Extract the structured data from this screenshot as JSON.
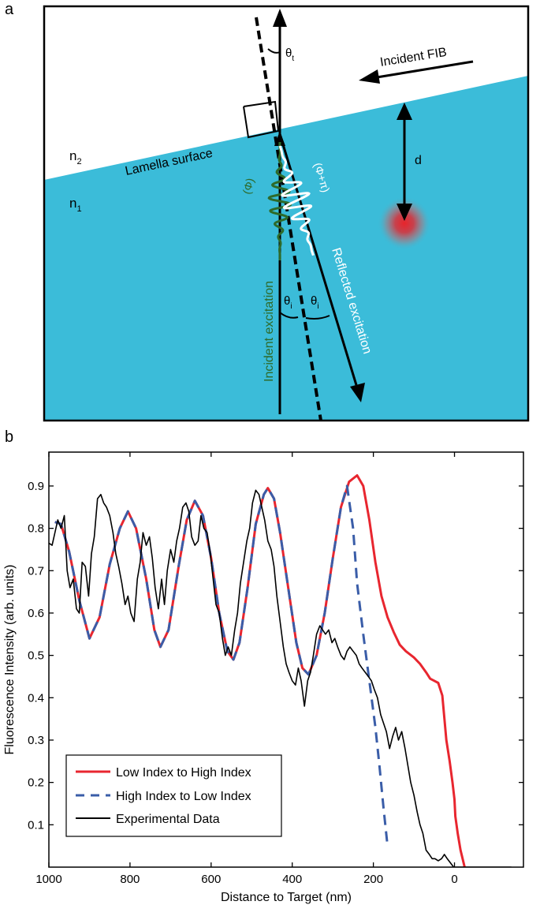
{
  "colors": {
    "lamella": "#3BBCD9",
    "incident_wave": "#2E6A2A",
    "reflected_wave": "#FFFFFF",
    "emitter": "#E8242B",
    "low_to_high": "#E8262F",
    "high_to_low": "#3A5DA8",
    "experimental": "#000000"
  },
  "panel_a": {
    "panel_label": "a",
    "theta_t": "θ",
    "theta_t_sub": "t",
    "theta_i": "θ",
    "theta_i_sub": "i",
    "incident_fib": "Incident FIB",
    "n2": "n",
    "n2_sub": "2",
    "n1": "n",
    "n1_sub": "1",
    "lamella_surface": "Lamella surface",
    "d": "d",
    "phi": "(Φ)",
    "phi_pi": "(Φ+π)",
    "incident_excitation": "Incident excitation",
    "reflected_excitation": "Reflected excitation"
  },
  "panel_b": {
    "panel_label": "b",
    "chart_data": {
      "type": "line",
      "title": "",
      "xlabel": "Distance to Target (nm)",
      "ylabel": "Fluorescence Intensity (arb. units)",
      "xlim": [
        1000,
        -170
      ],
      "ylim": [
        0,
        0.98
      ],
      "x_ticks": [
        1000,
        800,
        600,
        400,
        200,
        0
      ],
      "x_tick_labels": [
        "1000",
        "800",
        "600",
        "400",
        "200",
        "0"
      ],
      "y_ticks": [
        0.1,
        0.2,
        0.3,
        0.4,
        0.5,
        0.6,
        0.7,
        0.8,
        0.9
      ],
      "y_tick_labels": [
        "0.1",
        "0.2",
        "0.3",
        "0.4",
        "0.5",
        "0.6",
        "0.7",
        "0.8",
        "0.9"
      ],
      "grid": false,
      "legend_position": "bottom-left",
      "series": [
        {
          "name": "Low Index to High Index",
          "style": "solid",
          "x": [
            985,
            970,
            950,
            925,
            900,
            875,
            850,
            825,
            805,
            785,
            760,
            740,
            725,
            705,
            680,
            660,
            640,
            620,
            600,
            580,
            560,
            545,
            530,
            510,
            490,
            470,
            460,
            445,
            430,
            410,
            390,
            375,
            360,
            340,
            320,
            300,
            280,
            260,
            240,
            225,
            210,
            195,
            180,
            165,
            150,
            135,
            120,
            100,
            85,
            70,
            60,
            50,
            40,
            30,
            20,
            12,
            5,
            0,
            -2,
            -8,
            -15,
            -25,
            -30
          ],
          "y": [
            0.815,
            0.81,
            0.745,
            0.63,
            0.54,
            0.59,
            0.715,
            0.8,
            0.84,
            0.8,
            0.68,
            0.56,
            0.52,
            0.56,
            0.71,
            0.82,
            0.865,
            0.83,
            0.73,
            0.6,
            0.51,
            0.49,
            0.53,
            0.66,
            0.81,
            0.88,
            0.895,
            0.87,
            0.79,
            0.66,
            0.53,
            0.47,
            0.455,
            0.5,
            0.6,
            0.73,
            0.85,
            0.91,
            0.925,
            0.9,
            0.82,
            0.72,
            0.64,
            0.59,
            0.555,
            0.525,
            0.51,
            0.495,
            0.48,
            0.46,
            0.445,
            0.44,
            0.435,
            0.405,
            0.3,
            0.25,
            0.2,
            0.16,
            0.12,
            0.08,
            0.04,
            0.0,
            -0.02
          ]
        },
        {
          "name": "High Index to Low Index",
          "style": "dashed",
          "x": [
            985,
            970,
            950,
            925,
            900,
            875,
            850,
            825,
            805,
            785,
            760,
            740,
            725,
            705,
            680,
            660,
            640,
            620,
            600,
            580,
            560,
            545,
            530,
            510,
            490,
            470,
            460,
            445,
            430,
            410,
            390,
            375,
            360,
            340,
            320,
            300,
            280,
            265,
            250,
            240,
            225,
            210,
            195,
            185,
            175,
            165
          ],
          "y": [
            0.815,
            0.81,
            0.745,
            0.63,
            0.54,
            0.59,
            0.715,
            0.8,
            0.84,
            0.8,
            0.68,
            0.56,
            0.52,
            0.56,
            0.71,
            0.82,
            0.865,
            0.83,
            0.73,
            0.6,
            0.51,
            0.49,
            0.53,
            0.66,
            0.81,
            0.88,
            0.895,
            0.87,
            0.79,
            0.66,
            0.53,
            0.47,
            0.455,
            0.5,
            0.6,
            0.73,
            0.85,
            0.9,
            0.8,
            0.67,
            0.55,
            0.44,
            0.33,
            0.24,
            0.14,
            0.05
          ]
        },
        {
          "name": "Experimental Data",
          "style": "solid",
          "x": [
            1000,
            992,
            985,
            978,
            970,
            962,
            955,
            948,
            940,
            932,
            925,
            918,
            910,
            902,
            895,
            888,
            880,
            872,
            865,
            858,
            850,
            842,
            835,
            828,
            820,
            812,
            805,
            798,
            790,
            782,
            775,
            768,
            760,
            752,
            745,
            738,
            730,
            722,
            715,
            708,
            700,
            692,
            685,
            678,
            670,
            662,
            655,
            648,
            640,
            632,
            625,
            618,
            610,
            602,
            595,
            588,
            580,
            572,
            565,
            558,
            550,
            542,
            535,
            528,
            520,
            512,
            505,
            498,
            490,
            482,
            475,
            468,
            460,
            452,
            445,
            438,
            430,
            422,
            415,
            408,
            400,
            392,
            385,
            378,
            370,
            362,
            355,
            348,
            340,
            332,
            325,
            318,
            310,
            302,
            295,
            288,
            280,
            272,
            265,
            258,
            250,
            242,
            235,
            228,
            220,
            212,
            205,
            198,
            190,
            182,
            175,
            168,
            160,
            152,
            145,
            138,
            130,
            122,
            115,
            108,
            100,
            92,
            85,
            78,
            70,
            62,
            55,
            48,
            40,
            32,
            25,
            18,
            10,
            2,
            -5,
            -12,
            -20,
            -28,
            -35,
            -42,
            -50,
            -58,
            -65,
            -72,
            -80,
            -88,
            -95,
            -102,
            -110,
            -118,
            -125,
            -132,
            -140
          ],
          "y": [
            0.765,
            0.76,
            0.79,
            0.82,
            0.8,
            0.83,
            0.7,
            0.66,
            0.68,
            0.61,
            0.6,
            0.72,
            0.71,
            0.64,
            0.74,
            0.78,
            0.87,
            0.88,
            0.86,
            0.85,
            0.83,
            0.79,
            0.74,
            0.71,
            0.67,
            0.62,
            0.64,
            0.6,
            0.58,
            0.68,
            0.72,
            0.79,
            0.76,
            0.78,
            0.73,
            0.66,
            0.61,
            0.68,
            0.62,
            0.7,
            0.75,
            0.72,
            0.77,
            0.8,
            0.85,
            0.86,
            0.84,
            0.78,
            0.76,
            0.77,
            0.83,
            0.8,
            0.79,
            0.74,
            0.68,
            0.62,
            0.6,
            0.54,
            0.5,
            0.52,
            0.5,
            0.56,
            0.6,
            0.67,
            0.72,
            0.77,
            0.8,
            0.86,
            0.89,
            0.88,
            0.85,
            0.82,
            0.77,
            0.75,
            0.71,
            0.64,
            0.58,
            0.52,
            0.48,
            0.46,
            0.44,
            0.43,
            0.47,
            0.44,
            0.38,
            0.44,
            0.46,
            0.5,
            0.55,
            0.57,
            0.56,
            0.55,
            0.56,
            0.53,
            0.54,
            0.52,
            0.5,
            0.49,
            0.51,
            0.52,
            0.51,
            0.5,
            0.48,
            0.47,
            0.46,
            0.45,
            0.44,
            0.42,
            0.4,
            0.36,
            0.34,
            0.32,
            0.28,
            0.31,
            0.33,
            0.3,
            0.32,
            0.28,
            0.24,
            0.2,
            0.17,
            0.13,
            0.1,
            0.08,
            0.04,
            0.03,
            0.02,
            0.02,
            0.015,
            0.02,
            0.03,
            0.02,
            0.01,
            0.0,
            0.0,
            0.0,
            0.0,
            0.0,
            0.0,
            0.0,
            0.0,
            0.0,
            0.0,
            0.0,
            0.0,
            0.0,
            0.0,
            0.0,
            0.0,
            0.0,
            0.0,
            0.0,
            0.0
          ]
        }
      ]
    }
  }
}
